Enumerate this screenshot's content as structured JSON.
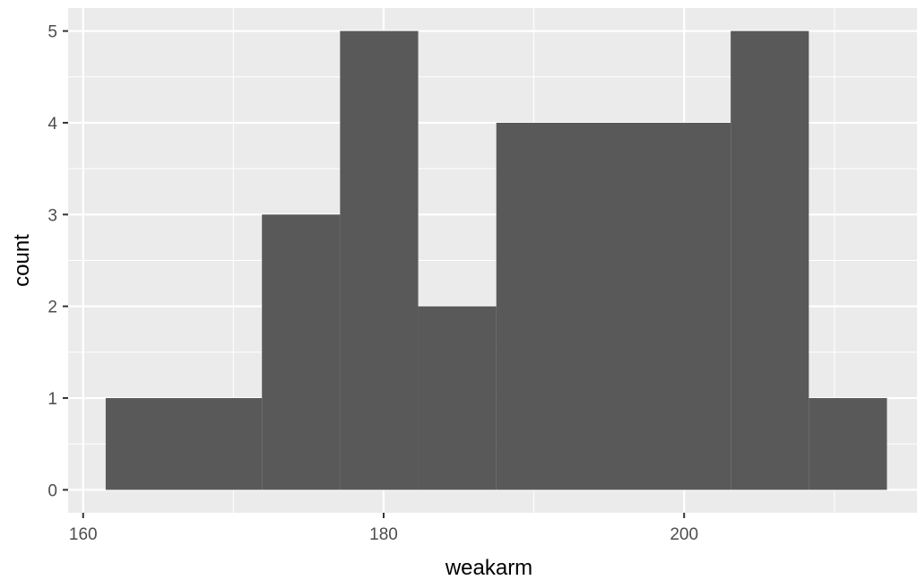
{
  "chart_data": {
    "type": "bar",
    "subtype": "histogram",
    "title": "",
    "xlabel": "weakarm",
    "ylabel": "count",
    "bins": [
      {
        "x0": 161.5,
        "x1": 171.9,
        "count": 1
      },
      {
        "x0": 171.9,
        "x1": 177.1,
        "count": 3
      },
      {
        "x0": 177.1,
        "x1": 182.3,
        "count": 5
      },
      {
        "x0": 182.3,
        "x1": 187.5,
        "count": 2
      },
      {
        "x0": 187.5,
        "x1": 203.1,
        "count": 4
      },
      {
        "x0": 203.1,
        "x1": 208.3,
        "count": 5
      },
      {
        "x0": 208.3,
        "x1": 213.5,
        "count": 1
      }
    ],
    "xlim": [
      159,
      215.5
    ],
    "ylim": [
      -0.25,
      5.25
    ],
    "xticks": [
      160,
      180,
      200
    ],
    "xtick_labels": [
      "160",
      "180",
      "200"
    ],
    "yticks": [
      0,
      1,
      2,
      3,
      4,
      5
    ],
    "ytick_labels": [
      "0",
      "1",
      "2",
      "3",
      "4",
      "5"
    ],
    "grid": true,
    "legend": "none",
    "colors": {
      "panel_background": "#ebebeb",
      "grid_line": "#ffffff",
      "bar_fill": "#595959",
      "tick_mark": "#333333"
    }
  }
}
